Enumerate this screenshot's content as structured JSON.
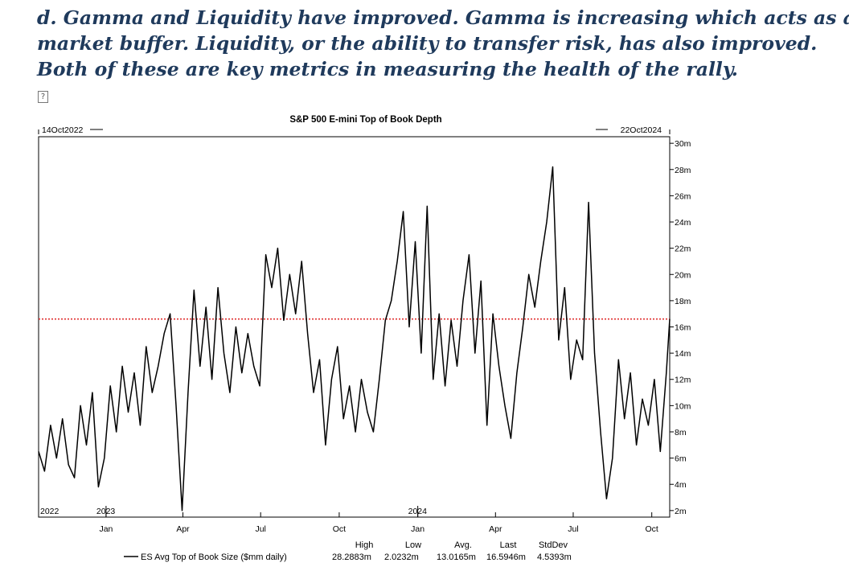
{
  "paragraph": {
    "lines": [
      "d. Gamma and Liquidity have improved. Gamma is increasing which acts as a",
      "market buffer. Liquidity, or the ability to transfer risk, has also improved.",
      "Both of these are key metrics in measuring the health of the rally."
    ],
    "broken_image_glyph": "?"
  },
  "chart_data": {
    "type": "line",
    "title": "S&P 500 E-mini Top of Book Depth",
    "start_label": "14Oct2022",
    "end_label": "22Oct2024",
    "ylim": [
      1.5,
      30.5
    ],
    "y_ticks": [
      2,
      4,
      6,
      8,
      10,
      12,
      14,
      16,
      18,
      20,
      22,
      24,
      26,
      28,
      30
    ],
    "y_tick_suffix": "m",
    "x_range": [
      "2022-10-14",
      "2024-10-22"
    ],
    "x_ticks": [
      {
        "date": "2023-01-01",
        "label": "Jan"
      },
      {
        "date": "2023-04-01",
        "label": "Apr"
      },
      {
        "date": "2023-07-01",
        "label": "Jul"
      },
      {
        "date": "2023-10-01",
        "label": "Oct"
      },
      {
        "date": "2024-01-01",
        "label": "Jan"
      },
      {
        "date": "2024-04-01",
        "label": "Apr"
      },
      {
        "date": "2024-07-01",
        "label": "Jul"
      },
      {
        "date": "2024-10-01",
        "label": "Oct"
      }
    ],
    "year_labels": [
      {
        "date": "2022-10-14",
        "label": "2022"
      },
      {
        "date": "2023-01-01",
        "label": "2023"
      },
      {
        "date": "2024-01-01",
        "label": "2024"
      }
    ],
    "reference_line": {
      "value": 16.6,
      "color": "#e03030",
      "style": "dotted"
    },
    "series": [
      {
        "name": "ES Avg Top of Book Size ($mm daily)",
        "color": "#000000",
        "points": [
          [
            "2022-10-14",
            6.5
          ],
          [
            "2022-10-21",
            5.0
          ],
          [
            "2022-10-28",
            8.5
          ],
          [
            "2022-11-04",
            6.0
          ],
          [
            "2022-11-11",
            9.0
          ],
          [
            "2022-11-18",
            5.5
          ],
          [
            "2022-11-25",
            4.5
          ],
          [
            "2022-12-02",
            10.0
          ],
          [
            "2022-12-09",
            7.0
          ],
          [
            "2022-12-16",
            11.0
          ],
          [
            "2022-12-23",
            3.8
          ],
          [
            "2022-12-30",
            6.0
          ],
          [
            "2023-01-06",
            11.5
          ],
          [
            "2023-01-13",
            8.0
          ],
          [
            "2023-01-20",
            13.0
          ],
          [
            "2023-01-27",
            9.5
          ],
          [
            "2023-02-03",
            12.5
          ],
          [
            "2023-02-10",
            8.5
          ],
          [
            "2023-02-17",
            14.5
          ],
          [
            "2023-02-24",
            11.0
          ],
          [
            "2023-03-03",
            13.0
          ],
          [
            "2023-03-10",
            15.5
          ],
          [
            "2023-03-17",
            17.0
          ],
          [
            "2023-03-24",
            10.0
          ],
          [
            "2023-03-31",
            2.0
          ],
          [
            "2023-04-07",
            11.0
          ],
          [
            "2023-04-14",
            18.8
          ],
          [
            "2023-04-21",
            13.0
          ],
          [
            "2023-04-28",
            17.5
          ],
          [
            "2023-05-05",
            12.0
          ],
          [
            "2023-05-12",
            19.0
          ],
          [
            "2023-05-19",
            14.0
          ],
          [
            "2023-05-26",
            11.0
          ],
          [
            "2023-06-02",
            16.0
          ],
          [
            "2023-06-09",
            12.5
          ],
          [
            "2023-06-16",
            15.5
          ],
          [
            "2023-06-23",
            13.0
          ],
          [
            "2023-06-30",
            11.5
          ],
          [
            "2023-07-07",
            21.5
          ],
          [
            "2023-07-14",
            19.0
          ],
          [
            "2023-07-21",
            22.0
          ],
          [
            "2023-07-28",
            16.5
          ],
          [
            "2023-08-04",
            20.0
          ],
          [
            "2023-08-11",
            17.0
          ],
          [
            "2023-08-18",
            21.0
          ],
          [
            "2023-08-25",
            15.5
          ],
          [
            "2023-09-01",
            11.0
          ],
          [
            "2023-09-08",
            13.5
          ],
          [
            "2023-09-15",
            7.0
          ],
          [
            "2023-09-22",
            12.0
          ],
          [
            "2023-09-29",
            14.5
          ],
          [
            "2023-10-06",
            9.0
          ],
          [
            "2023-10-13",
            11.5
          ],
          [
            "2023-10-20",
            8.0
          ],
          [
            "2023-10-27",
            12.0
          ],
          [
            "2023-11-03",
            9.5
          ],
          [
            "2023-11-10",
            8.0
          ],
          [
            "2023-11-17",
            12.0
          ],
          [
            "2023-11-24",
            16.5
          ],
          [
            "2023-12-01",
            18.0
          ],
          [
            "2023-12-08",
            21.0
          ],
          [
            "2023-12-15",
            24.8
          ],
          [
            "2023-12-22",
            16.0
          ],
          [
            "2023-12-29",
            22.5
          ],
          [
            "2024-01-05",
            14.0
          ],
          [
            "2024-01-12",
            25.2
          ],
          [
            "2024-01-19",
            12.0
          ],
          [
            "2024-01-26",
            17.0
          ],
          [
            "2024-02-02",
            11.5
          ],
          [
            "2024-02-09",
            16.5
          ],
          [
            "2024-02-16",
            13.0
          ],
          [
            "2024-02-23",
            18.0
          ],
          [
            "2024-03-01",
            21.5
          ],
          [
            "2024-03-08",
            14.0
          ],
          [
            "2024-03-15",
            19.5
          ],
          [
            "2024-03-22",
            8.5
          ],
          [
            "2024-03-29",
            17.0
          ],
          [
            "2024-04-05",
            13.0
          ],
          [
            "2024-04-12",
            10.0
          ],
          [
            "2024-04-19",
            7.5
          ],
          [
            "2024-04-26",
            12.5
          ],
          [
            "2024-05-03",
            16.0
          ],
          [
            "2024-05-10",
            20.0
          ],
          [
            "2024-05-17",
            17.5
          ],
          [
            "2024-05-24",
            21.0
          ],
          [
            "2024-05-31",
            24.0
          ],
          [
            "2024-06-07",
            28.2
          ],
          [
            "2024-06-14",
            15.0
          ],
          [
            "2024-06-21",
            19.0
          ],
          [
            "2024-06-28",
            12.0
          ],
          [
            "2024-07-05",
            15.0
          ],
          [
            "2024-07-12",
            13.5
          ],
          [
            "2024-07-19",
            25.5
          ],
          [
            "2024-07-26",
            14.0
          ],
          [
            "2024-08-02",
            8.0
          ],
          [
            "2024-08-09",
            2.9
          ],
          [
            "2024-08-16",
            6.0
          ],
          [
            "2024-08-23",
            13.5
          ],
          [
            "2024-08-30",
            9.0
          ],
          [
            "2024-09-06",
            12.5
          ],
          [
            "2024-09-13",
            7.0
          ],
          [
            "2024-09-20",
            10.5
          ],
          [
            "2024-09-27",
            8.5
          ],
          [
            "2024-10-04",
            12.0
          ],
          [
            "2024-10-11",
            6.5
          ],
          [
            "2024-10-18",
            12.5
          ],
          [
            "2024-10-22",
            16.6
          ]
        ]
      }
    ],
    "legend": {
      "label": "ES Avg Top of Book Size ($mm daily)",
      "stats_headers": [
        "High",
        "Low",
        "Avg.",
        "Last",
        "StdDev"
      ],
      "stats_values": [
        "28.2883m",
        "2.0232m",
        "13.0165m",
        "16.5946m",
        "4.5393m"
      ]
    }
  }
}
